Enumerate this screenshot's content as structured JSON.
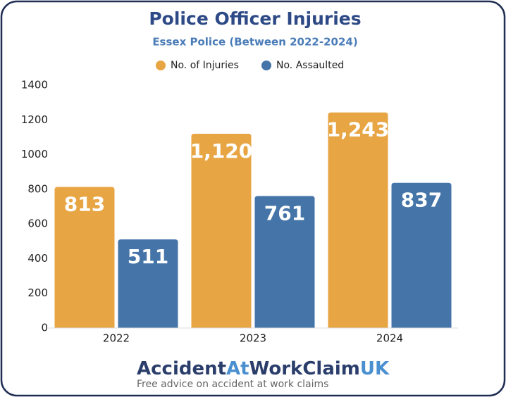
{
  "chart_data": {
    "type": "grouped-bar",
    "title": "Police Officer Injuries",
    "subtitle": "Essex Police (Between 2022-2024)",
    "categories": [
      "2022",
      "2023",
      "2024"
    ],
    "series": [
      {
        "name": "No. of Injuries",
        "color": "#e8a544",
        "values": [
          813,
          1120,
          1243
        ],
        "value_labels": [
          "813",
          "1,120",
          "1,243"
        ]
      },
      {
        "name": "No. Assaulted",
        "color": "#4474a8",
        "values": [
          511,
          761,
          837
        ],
        "value_labels": [
          "511",
          "761",
          "837"
        ]
      }
    ],
    "ylim": [
      0,
      1400
    ],
    "yticks": [
      0,
      200,
      400,
      600,
      800,
      1000,
      1200,
      1400
    ],
    "grid": false,
    "legend": "top"
  },
  "footer": {
    "brand": [
      "Accident",
      "At",
      "WorkClaim",
      "UK"
    ],
    "tagline": "Free advice on accident at work claims"
  }
}
